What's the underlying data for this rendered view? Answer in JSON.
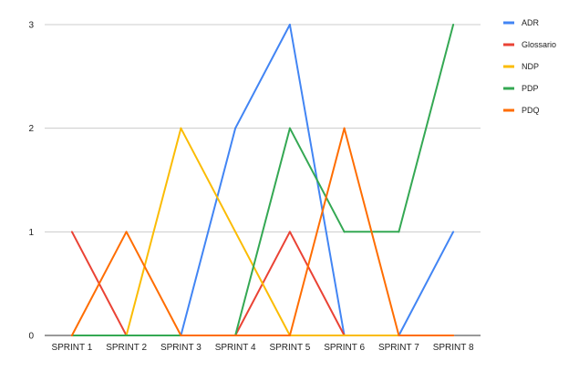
{
  "chart_data": {
    "type": "line",
    "title": "",
    "xlabel": "",
    "ylabel": "",
    "categories": [
      "SPRINT 1",
      "SPRINT 2",
      "SPRINT 3",
      "SPRINT 4",
      "SPRINT 5",
      "SPRINT 6",
      "SPRINT 7",
      "SPRINT 8"
    ],
    "ylim": [
      0,
      3
    ],
    "yticks": [
      "0",
      "1",
      "2",
      "3"
    ],
    "grid": true,
    "legend_position": "right",
    "series": [
      {
        "name": "ADR",
        "color": "#4285f4",
        "values": [
          0,
          0,
          0,
          2,
          3,
          0,
          0,
          1
        ]
      },
      {
        "name": "Glossario",
        "color": "#ea4335",
        "values": [
          1,
          0,
          0,
          0,
          1,
          0,
          0,
          0
        ]
      },
      {
        "name": "NDP",
        "color": "#fbbc04",
        "values": [
          0,
          0,
          2,
          1,
          0,
          0,
          0,
          0
        ]
      },
      {
        "name": "PDP",
        "color": "#34a853",
        "values": [
          0,
          0,
          0,
          0,
          2,
          1,
          1,
          3
        ]
      },
      {
        "name": "PDQ",
        "color": "#ff6d01",
        "values": [
          0,
          1,
          0,
          0,
          0,
          2,
          0,
          0
        ]
      }
    ]
  }
}
